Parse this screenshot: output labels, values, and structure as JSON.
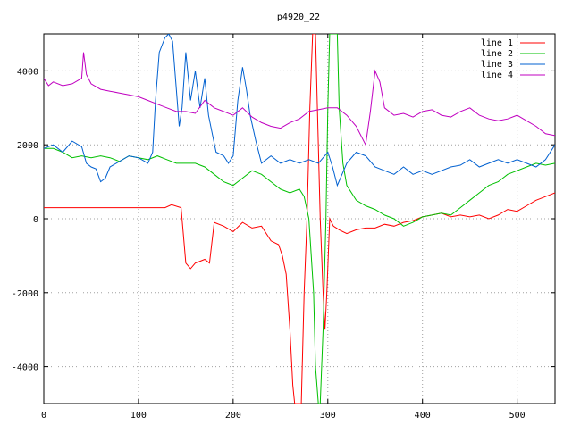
{
  "chart_data": {
    "type": "line",
    "title": "p4920_22",
    "xlabel": "",
    "ylabel": "",
    "xlim": [
      0,
      540
    ],
    "ylim": [
      -5000,
      5000
    ],
    "x_ticks": [
      0,
      100,
      200,
      300,
      400,
      500
    ],
    "y_ticks": [
      -4000,
      -2000,
      0,
      2000,
      4000
    ],
    "grid": true,
    "legend_position": "top-right",
    "series": [
      {
        "name": "line 1",
        "color": "#ff0000",
        "points": [
          [
            0,
            300
          ],
          [
            20,
            300
          ],
          [
            40,
            300
          ],
          [
            60,
            300
          ],
          [
            80,
            300
          ],
          [
            100,
            300
          ],
          [
            120,
            300
          ],
          [
            128,
            300
          ],
          [
            135,
            380
          ],
          [
            145,
            300
          ],
          [
            150,
            -1200
          ],
          [
            155,
            -1350
          ],
          [
            160,
            -1200
          ],
          [
            165,
            -1150
          ],
          [
            170,
            -1100
          ],
          [
            175,
            -1200
          ],
          [
            180,
            -100
          ],
          [
            190,
            -200
          ],
          [
            200,
            -350
          ],
          [
            210,
            -100
          ],
          [
            220,
            -250
          ],
          [
            230,
            -200
          ],
          [
            240,
            -600
          ],
          [
            248,
            -700
          ],
          [
            252,
            -1000
          ],
          [
            256,
            -1500
          ],
          [
            260,
            -3000
          ],
          [
            263,
            -4500
          ],
          [
            265,
            -5000
          ],
          [
            272,
            -5000
          ],
          [
            275,
            -2000
          ],
          [
            278,
            0
          ],
          [
            281,
            3000
          ],
          [
            284,
            5000
          ],
          [
            287,
            5000
          ],
          [
            289,
            3000
          ],
          [
            292,
            0
          ],
          [
            295,
            -2000
          ],
          [
            297,
            -3000
          ],
          [
            299,
            -2000
          ],
          [
            302,
            0
          ],
          [
            306,
            -200
          ],
          [
            312,
            -300
          ],
          [
            320,
            -400
          ],
          [
            330,
            -300
          ],
          [
            340,
            -250
          ],
          [
            350,
            -250
          ],
          [
            360,
            -150
          ],
          [
            370,
            -200
          ],
          [
            380,
            -100
          ],
          [
            390,
            -50
          ],
          [
            400,
            50
          ],
          [
            410,
            100
          ],
          [
            420,
            150
          ],
          [
            430,
            50
          ],
          [
            440,
            100
          ],
          [
            450,
            50
          ],
          [
            460,
            100
          ],
          [
            470,
            0
          ],
          [
            480,
            100
          ],
          [
            490,
            250
          ],
          [
            500,
            200
          ],
          [
            510,
            350
          ],
          [
            520,
            500
          ],
          [
            530,
            600
          ],
          [
            540,
            700
          ]
        ]
      },
      {
        "name": "line 2",
        "color": "#00c000",
        "points": [
          [
            0,
            1900
          ],
          [
            10,
            1900
          ],
          [
            20,
            1800
          ],
          [
            30,
            1650
          ],
          [
            40,
            1700
          ],
          [
            50,
            1650
          ],
          [
            60,
            1700
          ],
          [
            70,
            1650
          ],
          [
            80,
            1550
          ],
          [
            90,
            1700
          ],
          [
            100,
            1650
          ],
          [
            110,
            1600
          ],
          [
            120,
            1700
          ],
          [
            130,
            1600
          ],
          [
            140,
            1500
          ],
          [
            150,
            1500
          ],
          [
            160,
            1500
          ],
          [
            170,
            1400
          ],
          [
            180,
            1200
          ],
          [
            190,
            1000
          ],
          [
            200,
            900
          ],
          [
            210,
            1100
          ],
          [
            220,
            1300
          ],
          [
            230,
            1200
          ],
          [
            240,
            1000
          ],
          [
            250,
            800
          ],
          [
            260,
            700
          ],
          [
            270,
            800
          ],
          [
            275,
            600
          ],
          [
            280,
            0
          ],
          [
            285,
            -2000
          ],
          [
            287,
            -4000
          ],
          [
            290,
            -5000
          ],
          [
            292,
            -5000
          ],
          [
            295,
            -3000
          ],
          [
            298,
            0
          ],
          [
            300,
            3000
          ],
          [
            302,
            5000
          ],
          [
            310,
            5000
          ],
          [
            312,
            3000
          ],
          [
            316,
            1500
          ],
          [
            320,
            900
          ],
          [
            330,
            500
          ],
          [
            340,
            350
          ],
          [
            350,
            250
          ],
          [
            360,
            100
          ],
          [
            370,
            0
          ],
          [
            380,
            -200
          ],
          [
            390,
            -100
          ],
          [
            400,
            50
          ],
          [
            410,
            100
          ],
          [
            420,
            150
          ],
          [
            430,
            100
          ],
          [
            440,
            300
          ],
          [
            450,
            500
          ],
          [
            460,
            700
          ],
          [
            470,
            900
          ],
          [
            480,
            1000
          ],
          [
            490,
            1200
          ],
          [
            500,
            1300
          ],
          [
            510,
            1400
          ],
          [
            520,
            1500
          ],
          [
            530,
            1450
          ],
          [
            540,
            1500
          ]
        ]
      },
      {
        "name": "line 3",
        "color": "#0060d0",
        "points": [
          [
            0,
            1900
          ],
          [
            10,
            2000
          ],
          [
            20,
            1800
          ],
          [
            30,
            2100
          ],
          [
            40,
            1950
          ],
          [
            45,
            1500
          ],
          [
            50,
            1400
          ],
          [
            55,
            1350
          ],
          [
            60,
            1000
          ],
          [
            65,
            1100
          ],
          [
            70,
            1400
          ],
          [
            80,
            1550
          ],
          [
            90,
            1700
          ],
          [
            100,
            1650
          ],
          [
            110,
            1500
          ],
          [
            115,
            1800
          ],
          [
            118,
            3200
          ],
          [
            122,
            4500
          ],
          [
            128,
            4900
          ],
          [
            132,
            5000
          ],
          [
            136,
            4800
          ],
          [
            140,
            3500
          ],
          [
            143,
            2500
          ],
          [
            146,
            3000
          ],
          [
            150,
            4500
          ],
          [
            155,
            3200
          ],
          [
            160,
            4000
          ],
          [
            165,
            3000
          ],
          [
            170,
            3800
          ],
          [
            174,
            2800
          ],
          [
            178,
            2300
          ],
          [
            182,
            1800
          ],
          [
            190,
            1700
          ],
          [
            195,
            1500
          ],
          [
            200,
            1700
          ],
          [
            205,
            3200
          ],
          [
            210,
            4100
          ],
          [
            214,
            3500
          ],
          [
            218,
            2800
          ],
          [
            224,
            2100
          ],
          [
            230,
            1500
          ],
          [
            240,
            1700
          ],
          [
            250,
            1500
          ],
          [
            260,
            1600
          ],
          [
            270,
            1500
          ],
          [
            280,
            1600
          ],
          [
            290,
            1500
          ],
          [
            300,
            1800
          ],
          [
            305,
            1400
          ],
          [
            310,
            900
          ],
          [
            315,
            1200
          ],
          [
            320,
            1500
          ],
          [
            330,
            1800
          ],
          [
            340,
            1700
          ],
          [
            350,
            1400
          ],
          [
            360,
            1300
          ],
          [
            370,
            1200
          ],
          [
            380,
            1400
          ],
          [
            390,
            1200
          ],
          [
            400,
            1300
          ],
          [
            410,
            1200
          ],
          [
            420,
            1300
          ],
          [
            430,
            1400
          ],
          [
            440,
            1450
          ],
          [
            450,
            1600
          ],
          [
            460,
            1400
          ],
          [
            470,
            1500
          ],
          [
            480,
            1600
          ],
          [
            490,
            1500
          ],
          [
            500,
            1600
          ],
          [
            510,
            1500
          ],
          [
            520,
            1400
          ],
          [
            530,
            1600
          ],
          [
            540,
            2000
          ]
        ]
      },
      {
        "name": "line 4",
        "color": "#c000c0",
        "points": [
          [
            0,
            3800
          ],
          [
            5,
            3600
          ],
          [
            10,
            3700
          ],
          [
            20,
            3600
          ],
          [
            30,
            3650
          ],
          [
            40,
            3800
          ],
          [
            42,
            4500
          ],
          [
            45,
            3900
          ],
          [
            50,
            3650
          ],
          [
            60,
            3500
          ],
          [
            70,
            3450
          ],
          [
            80,
            3400
          ],
          [
            90,
            3350
          ],
          [
            100,
            3300
          ],
          [
            110,
            3200
          ],
          [
            120,
            3100
          ],
          [
            130,
            3000
          ],
          [
            140,
            2900
          ],
          [
            150,
            2900
          ],
          [
            160,
            2850
          ],
          [
            170,
            3200
          ],
          [
            180,
            3000
          ],
          [
            190,
            2900
          ],
          [
            200,
            2800
          ],
          [
            210,
            3000
          ],
          [
            220,
            2750
          ],
          [
            230,
            2600
          ],
          [
            240,
            2500
          ],
          [
            250,
            2450
          ],
          [
            260,
            2600
          ],
          [
            270,
            2700
          ],
          [
            280,
            2900
          ],
          [
            290,
            2950
          ],
          [
            300,
            3000
          ],
          [
            310,
            3000
          ],
          [
            320,
            2800
          ],
          [
            330,
            2500
          ],
          [
            340,
            2000
          ],
          [
            345,
            2900
          ],
          [
            350,
            4000
          ],
          [
            355,
            3700
          ],
          [
            360,
            3000
          ],
          [
            370,
            2800
          ],
          [
            380,
            2850
          ],
          [
            390,
            2750
          ],
          [
            400,
            2900
          ],
          [
            410,
            2950
          ],
          [
            420,
            2800
          ],
          [
            430,
            2750
          ],
          [
            440,
            2900
          ],
          [
            450,
            3000
          ],
          [
            460,
            2800
          ],
          [
            470,
            2700
          ],
          [
            480,
            2650
          ],
          [
            490,
            2700
          ],
          [
            500,
            2800
          ],
          [
            510,
            2650
          ],
          [
            520,
            2500
          ],
          [
            530,
            2300
          ],
          [
            540,
            2250
          ]
        ]
      }
    ]
  }
}
